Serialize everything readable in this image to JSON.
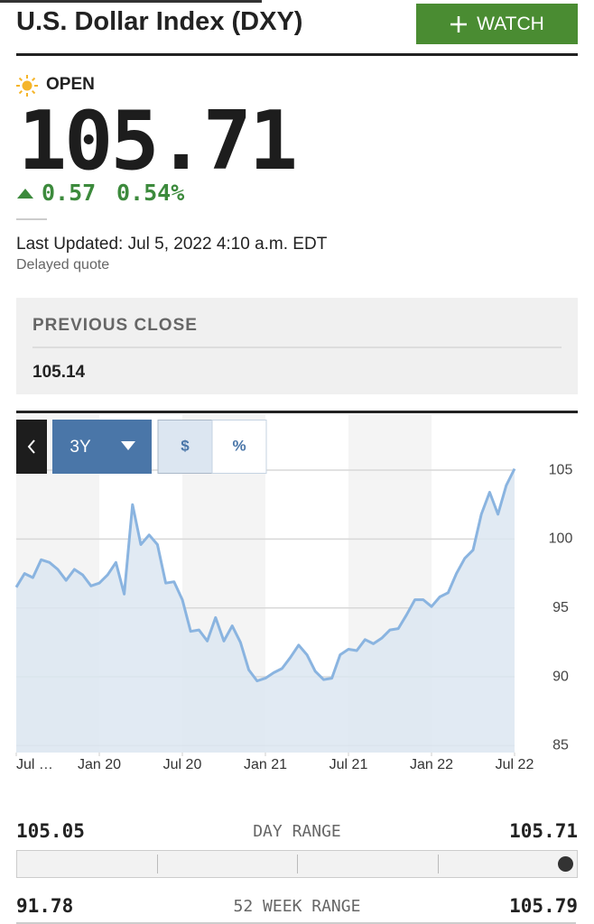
{
  "header": {
    "title": "U.S. Dollar Index (DXY)",
    "watch_button": "WATCH"
  },
  "status": "OPEN",
  "price": 105.71,
  "change": 0.57,
  "change_percent": "0.54%",
  "last_updated": "Last Updated: Jul 5, 2022 4:10 a.m. EDT",
  "delayed": "Delayed quote",
  "previous_close": {
    "label": "PREVIOUS CLOSE",
    "value": 105.14
  },
  "controls": {
    "range": "3Y",
    "dollar": "$",
    "percent": "%"
  },
  "chart_data": {
    "type": "area",
    "color": "#8ab4e0",
    "fill": "#dce6f1",
    "x": [
      2019.5,
      2019.55,
      2019.6,
      2019.65,
      2019.7,
      2019.75,
      2019.8,
      2019.85,
      2019.9,
      2019.95,
      2020,
      2020.05,
      2020.1,
      2020.15,
      2020.2,
      2020.25,
      2020.3,
      2020.35,
      2020.4,
      2020.45,
      2020.5,
      2020.55,
      2020.6,
      2020.65,
      2020.7,
      2020.75,
      2020.8,
      2020.85,
      2020.9,
      2020.95,
      2021,
      2021.05,
      2021.1,
      2021.15,
      2021.2,
      2021.25,
      2021.3,
      2021.35,
      2021.4,
      2021.45,
      2021.5,
      2021.55,
      2021.6,
      2021.65,
      2021.7,
      2021.75,
      2021.8,
      2021.85,
      2021.9,
      2021.95,
      2022,
      2022.05,
      2022.1,
      2022.15,
      2022.2,
      2022.25,
      2022.3,
      2022.35,
      2022.4,
      2022.45,
      2022.5
    ],
    "values": [
      96.5,
      97.5,
      97.2,
      98.5,
      98.3,
      97.8,
      97,
      97.8,
      97.4,
      96.6,
      96.8,
      97.4,
      98.3,
      96,
      102.5,
      99.6,
      100.3,
      99.6,
      96.8,
      96.9,
      95.6,
      93.3,
      93.4,
      92.6,
      94.3,
      92.6,
      93.7,
      92.5,
      90.5,
      89.7,
      89.9,
      90.3,
      90.6,
      91.4,
      92.3,
      91.6,
      90.4,
      89.8,
      89.9,
      91.6,
      92,
      91.9,
      92.7,
      92.4,
      92.8,
      93.4,
      93.5,
      94.5,
      95.6,
      95.6,
      95.1,
      95.8,
      96.1,
      97.5,
      98.6,
      99.2,
      101.8,
      103.4,
      101.8,
      103.9,
      105.1
    ],
    "xlim": [
      2019.5,
      2022.5
    ],
    "xticks": [
      {
        "value": 2019.5,
        "label": "Jul …"
      },
      {
        "value": 2020,
        "label": "Jan 20"
      },
      {
        "value": 2020.5,
        "label": "Jul 20"
      },
      {
        "value": 2021,
        "label": "Jan 21"
      },
      {
        "value": 2021.5,
        "label": "Jul 21"
      },
      {
        "value": 2022,
        "label": "Jan 22"
      },
      {
        "value": 2022.5,
        "label": "Jul 22"
      }
    ],
    "ylim": [
      84.5,
      109
    ],
    "yticks": [
      85,
      90,
      95,
      100,
      105
    ],
    "grid": true
  },
  "day_range": {
    "low": 105.05,
    "label": "DAY RANGE",
    "high": 105.71
  },
  "week_range": {
    "low": 91.78,
    "label": "52 WEEK RANGE",
    "high": 105.79
  }
}
